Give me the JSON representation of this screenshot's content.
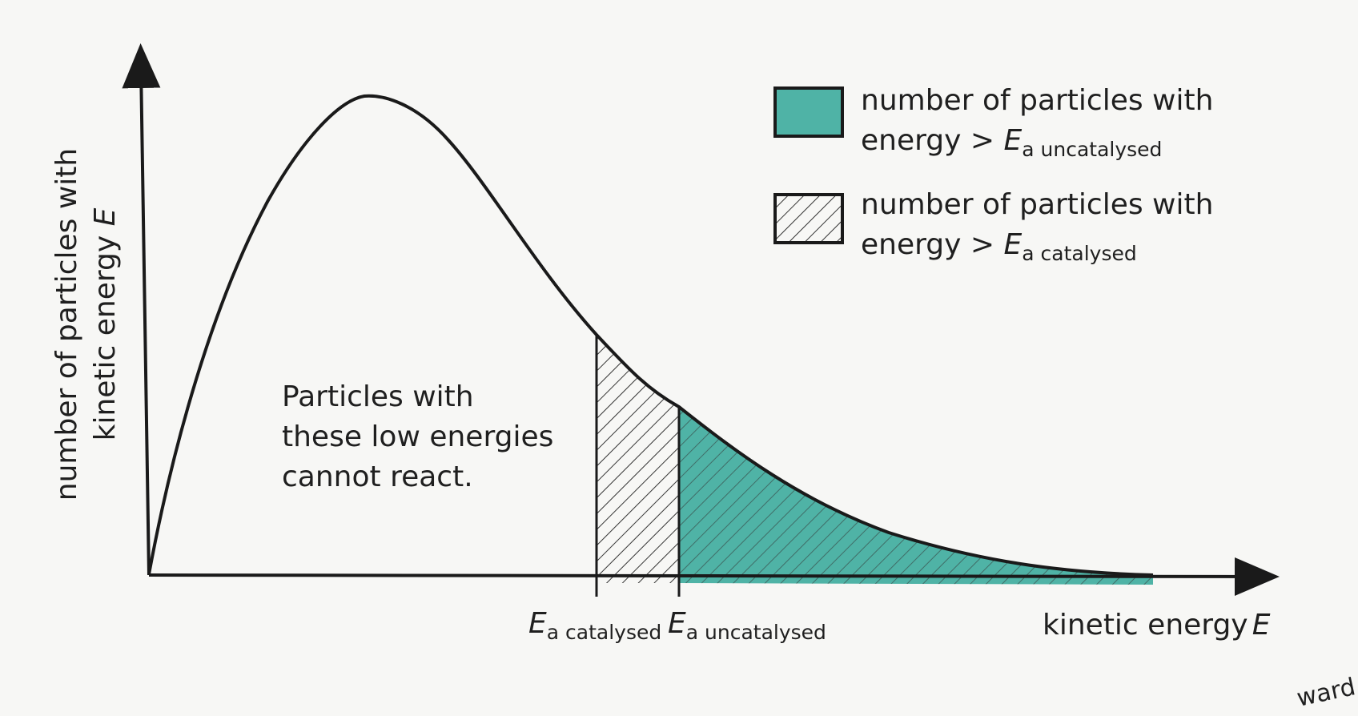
{
  "diagram": {
    "y_axis_label_line1": "number of particles with",
    "y_axis_label_line2": "kinetic energy",
    "y_axis_label_var": "E",
    "x_axis_label": "kinetic energy",
    "x_axis_label_var": "E",
    "annotation_lines": [
      "Particles with",
      "these low energies",
      "cannot react."
    ],
    "ticks": [
      {
        "symbol": "E",
        "subscript": "a catalysed"
      },
      {
        "symbol": "E",
        "subscript": "a uncatalysed"
      }
    ],
    "legend": [
      {
        "line1": "number of particles with",
        "line2_prefix": "energy > ",
        "symbol": "E",
        "subscript": "a uncatalysed",
        "fill": "teal"
      },
      {
        "line1": "number of particles with",
        "line2_prefix": "energy > ",
        "symbol": "E",
        "subscript": "a catalysed",
        "fill": "hatched"
      }
    ],
    "margin_fragment": "ward"
  },
  "colors": {
    "teal": "#4fb3a6",
    "curve": "#1a1a1a",
    "hatch": "#333333",
    "background": "#f7f7f5"
  }
}
